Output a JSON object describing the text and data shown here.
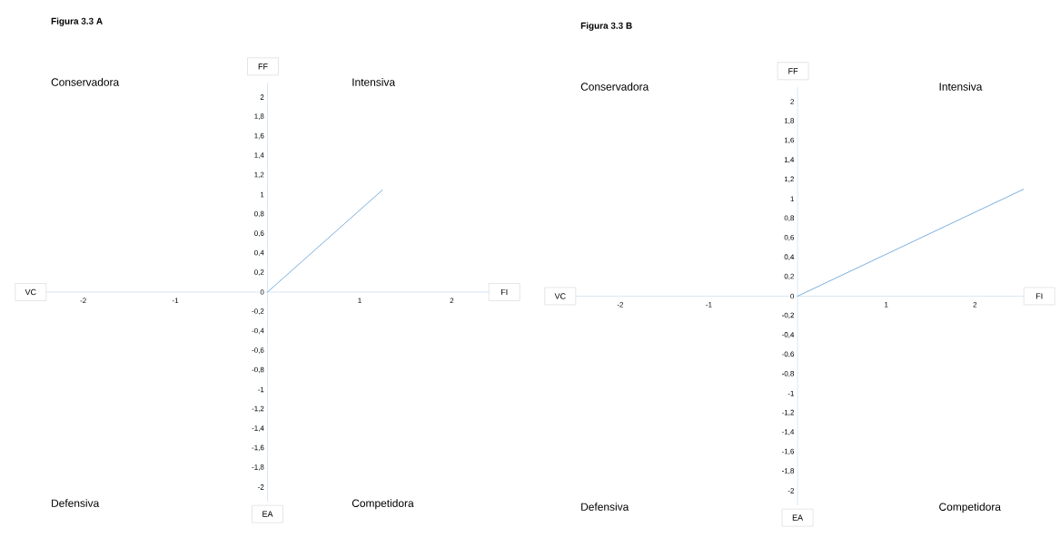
{
  "chart_data": [
    {
      "type": "line",
      "title": "Figura 3.3 A",
      "x": [
        0,
        1.25
      ],
      "values": [
        0,
        1.05
      ],
      "color": "#5b9bd5",
      "xlim": [
        -2.4,
        2.4
      ],
      "ylim": [
        -2.15,
        2.15
      ],
      "xticks": [
        -2,
        -1,
        1,
        2
      ],
      "yticks": [
        {
          "value": -2,
          "label": "-2"
        },
        {
          "value": -1.8,
          "label": "-1,8"
        },
        {
          "value": -1.6,
          "label": "-1,6"
        },
        {
          "value": -1.4,
          "label": "-1,4"
        },
        {
          "value": -1.2,
          "label": "-1,2"
        },
        {
          "value": -1,
          "label": "-1"
        },
        {
          "value": -0.8,
          "label": "-0,8"
        },
        {
          "value": -0.6,
          "label": "-0,6"
        },
        {
          "value": -0.4,
          "label": "-0,4"
        },
        {
          "value": -0.2,
          "label": "-0,2"
        },
        {
          "value": 0,
          "label": "0"
        },
        {
          "value": 0.2,
          "label": "0,2"
        },
        {
          "value": 0.4,
          "label": "0,4"
        },
        {
          "value": 0.6,
          "label": "0,6"
        },
        {
          "value": 0.8,
          "label": "0,8"
        },
        {
          "value": 1,
          "label": "1"
        },
        {
          "value": 1.2,
          "label": "1,2"
        },
        {
          "value": 1.4,
          "label": "1,4"
        },
        {
          "value": 1.6,
          "label": "1,6"
        },
        {
          "value": 1.8,
          "label": "1,8"
        },
        {
          "value": 2,
          "label": "2"
        }
      ],
      "annotations": [
        "Conservadora",
        "Intensiva",
        "Defensiva",
        "Competidora",
        "VC",
        "FI",
        "FF",
        "EA"
      ]
    },
    {
      "type": "line",
      "title": "Figura 3.3 B",
      "x": [
        0,
        2.55
      ],
      "values": [
        0,
        1.1
      ],
      "color": "#5b9bd5",
      "xlim": [
        -2.5,
        2.55
      ],
      "ylim": [
        -2.15,
        2.15
      ],
      "xticks": [
        -2,
        -1,
        1,
        2
      ],
      "yticks": [
        {
          "value": -2,
          "label": "-2"
        },
        {
          "value": -1.8,
          "label": "-1,8"
        },
        {
          "value": -1.6,
          "label": "-1,6"
        },
        {
          "value": -1.4,
          "label": "-1,4"
        },
        {
          "value": -1.2,
          "label": "-1,2"
        },
        {
          "value": -1,
          "label": "-1"
        },
        {
          "value": -0.8,
          "label": "-0,8"
        },
        {
          "value": -0.6,
          "label": "-0,6"
        },
        {
          "value": -0.4,
          "label": "-0,4"
        },
        {
          "value": -0.2,
          "label": "-0,2"
        },
        {
          "value": 0,
          "label": "0"
        },
        {
          "value": 0.2,
          "label": "0,2"
        },
        {
          "value": 0.4,
          "label": "0,4"
        },
        {
          "value": 0.6,
          "label": "0,6"
        },
        {
          "value": 0.8,
          "label": "0,8"
        },
        {
          "value": 1,
          "label": "1"
        },
        {
          "value": 1.2,
          "label": "1,2"
        },
        {
          "value": 1.4,
          "label": "1,4"
        },
        {
          "value": 1.6,
          "label": "1,6"
        },
        {
          "value": 1.8,
          "label": "1,8"
        },
        {
          "value": 2,
          "label": "2"
        }
      ],
      "annotations": [
        "Conservadora",
        "Intensiva",
        "Defensiva",
        "Competidora",
        "VC",
        "FI",
        "FF",
        "EA"
      ]
    }
  ]
}
